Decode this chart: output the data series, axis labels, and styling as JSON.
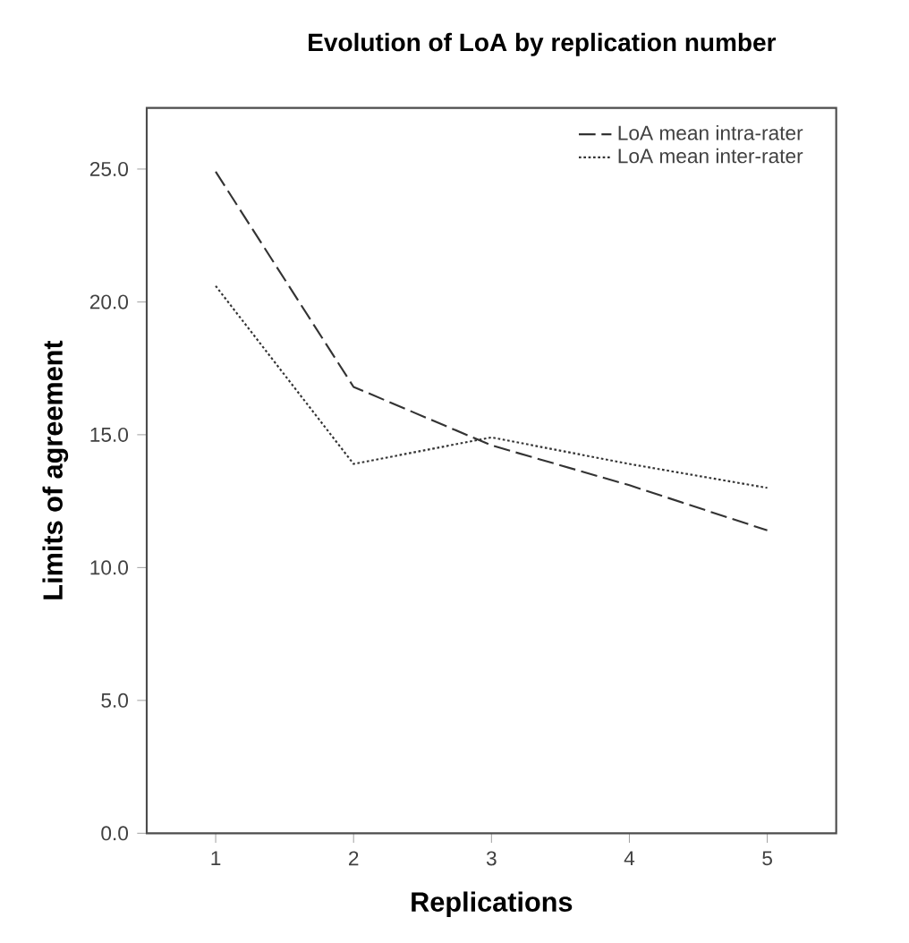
{
  "chart_data": {
    "type": "line",
    "title": "Evolution of LoA by replication number",
    "xlabel": "Replications",
    "ylabel": "Limits of agreement",
    "x": [
      1,
      2,
      3,
      4,
      5
    ],
    "series": [
      {
        "name": "LoA mean intra-rater",
        "color": "#333333",
        "line_style": "dashed",
        "values": [
          24.9,
          16.8,
          14.6,
          13.1,
          11.4
        ]
      },
      {
        "name": "LoA mean inter-rater",
        "color": "#333333",
        "line_style": "dotted",
        "values": [
          20.6,
          13.9,
          14.9,
          13.9,
          13.0
        ]
      }
    ],
    "xlim": [
      0.5,
      5.5
    ],
    "xticks": [
      1,
      2,
      3,
      4,
      5
    ],
    "ylim": [
      0,
      27.3
    ],
    "yticks": [
      {
        "value": 0,
        "label": "0.0"
      },
      {
        "value": 5,
        "label": "5.0"
      },
      {
        "value": 10,
        "label": "10.0"
      },
      {
        "value": 15,
        "label": "15.0"
      },
      {
        "value": 20,
        "label": "20.0"
      },
      {
        "value": 25,
        "label": "25.0"
      }
    ],
    "legend": "top right",
    "grid": false,
    "marker": "none"
  }
}
